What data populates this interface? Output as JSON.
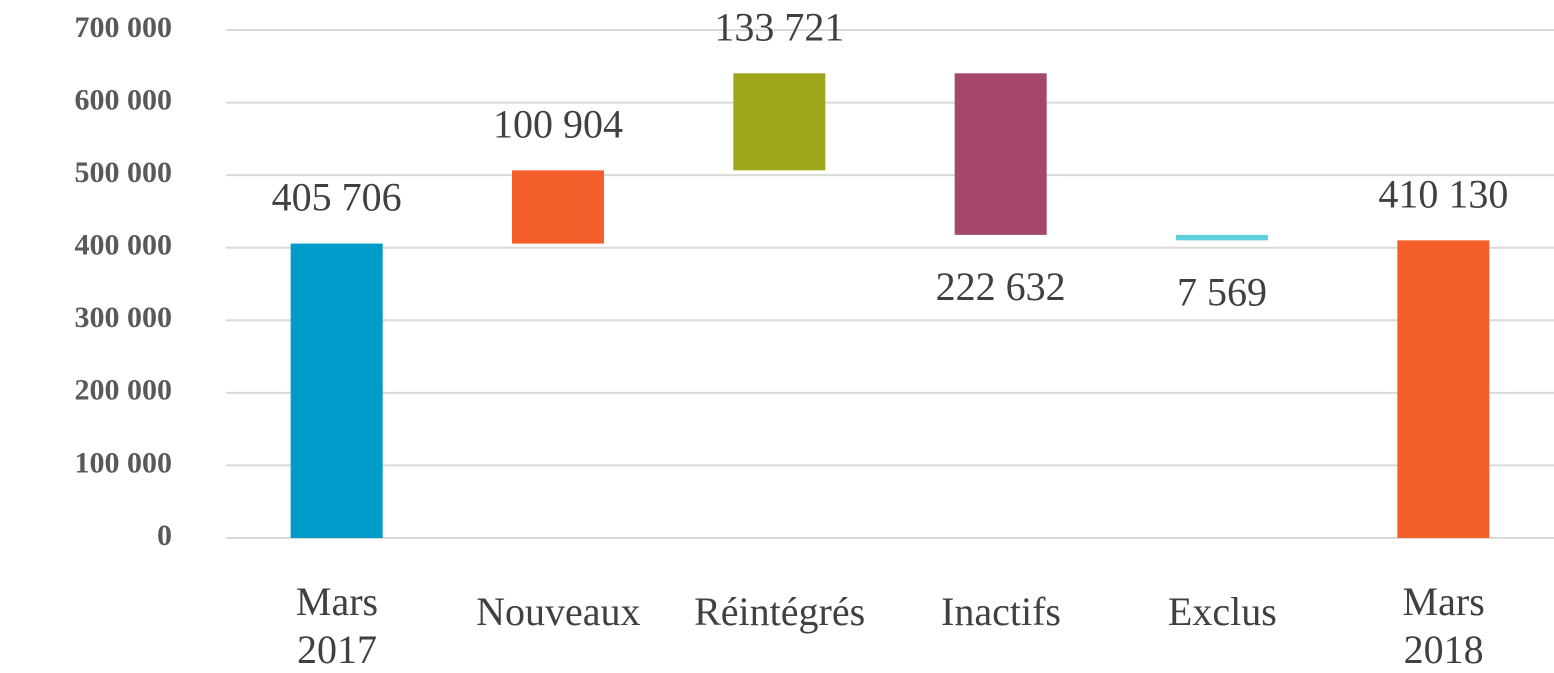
{
  "chart_data": {
    "type": "waterfall",
    "categories": [
      "Mars\n2017",
      "Nouveaux",
      "Réintégrés",
      "Inactifs",
      "Exclus",
      "Mars\n2018"
    ],
    "values": [
      405706,
      100904,
      133721,
      -222632,
      -7569,
      410130
    ],
    "value_labels": [
      "405 706",
      "100 904",
      "133 721",
      "222 632",
      "7 569",
      "410 130"
    ],
    "measures": [
      "absolute",
      "relative",
      "relative",
      "relative",
      "relative",
      "absolute"
    ],
    "colors": [
      "#009bc8",
      "#f45e2a",
      "#a0a619",
      "#a5476b",
      "#5fd0de",
      "#f45e2a"
    ],
    "ylim": [
      0,
      700000
    ],
    "yticks": [
      0,
      {
        "value": 100000,
        "label": "100 000"
      },
      {
        "value": 200000,
        "label": "200 000"
      },
      {
        "value": 300000,
        "label": "300 000"
      },
      {
        "value": 400000,
        "label": "400 000"
      },
      {
        "value": 500000,
        "label": "500 000"
      },
      {
        "value": 600000,
        "label": "600 000"
      },
      {
        "value": 700000,
        "label": "700 000"
      }
    ],
    "grid": true
  }
}
